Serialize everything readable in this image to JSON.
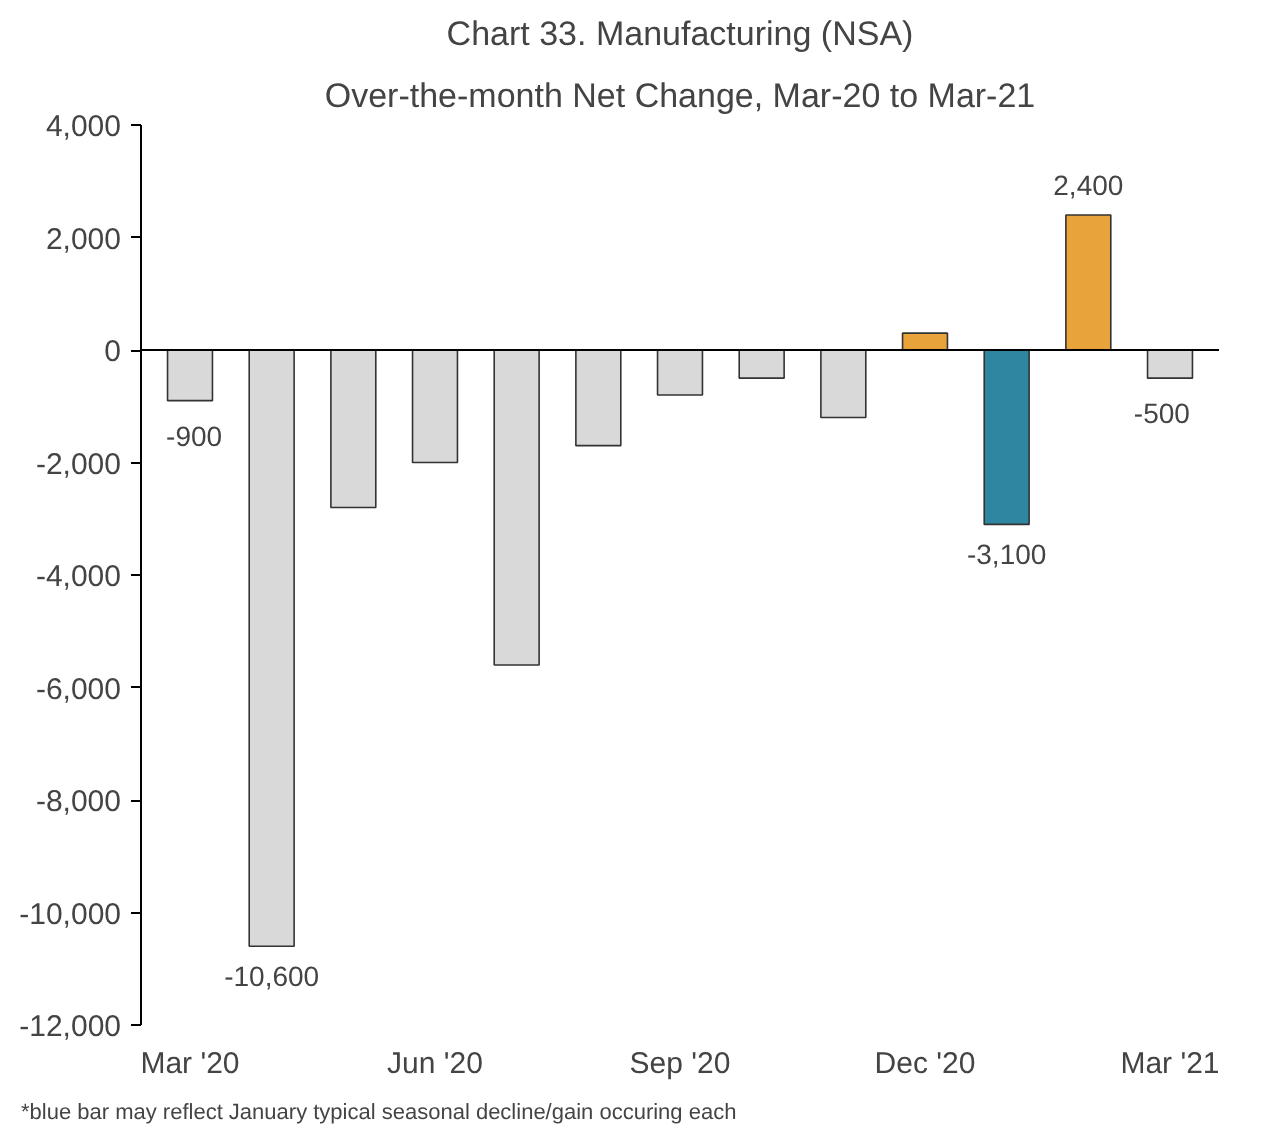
{
  "chart_data": {
    "type": "bar",
    "title": "Chart 33. Manufacturing (NSA)",
    "subtitle": "Over-the-month Net Change, Mar-20 to Mar-21",
    "categories": [
      "Mar '20",
      null,
      null,
      "Jun '20",
      null,
      null,
      "Sep '20",
      null,
      null,
      "Dec '20",
      null,
      null,
      "Mar '21"
    ],
    "values": [
      -900,
      -10600,
      -2800,
      -2000,
      -5600,
      -1700,
      -800,
      -500,
      -1200,
      300,
      -3100,
      2400,
      -500
    ],
    "colors": [
      "#d9d9d9",
      "#d9d9d9",
      "#d9d9d9",
      "#d9d9d9",
      "#d9d9d9",
      "#d9d9d9",
      "#d9d9d9",
      "#d9d9d9",
      "#d9d9d9",
      "#e8a33a",
      "#2f86a0",
      "#e8a33a",
      "#d9d9d9"
    ],
    "value_labels": [
      "-900",
      "-10,600",
      null,
      null,
      null,
      null,
      null,
      null,
      null,
      null,
      "-3,100",
      "2,400",
      "-500"
    ],
    "ylim": [
      -12000,
      4000
    ],
    "yticks": [
      {
        "value": -12000,
        "label": "-12,000"
      },
      {
        "value": -10000,
        "label": "-10,000"
      },
      {
        "value": -8000,
        "label": "-8,000"
      },
      {
        "value": -6000,
        "label": "-6,000"
      },
      {
        "value": -4000,
        "label": "-4,000"
      },
      {
        "value": -2000,
        "label": "-2,000"
      },
      {
        "value": 0,
        "label": "0"
      },
      {
        "value": 2000,
        "label": "2,000"
      },
      {
        "value": 4000,
        "label": "4,000"
      }
    ],
    "ref_lines": [
      {
        "axis": "y",
        "value": 0,
        "color": "#000000"
      }
    ],
    "grid": false,
    "annotations": [
      "*blue bar may reflect January typical seasonal decline/gain occuring each"
    ]
  }
}
